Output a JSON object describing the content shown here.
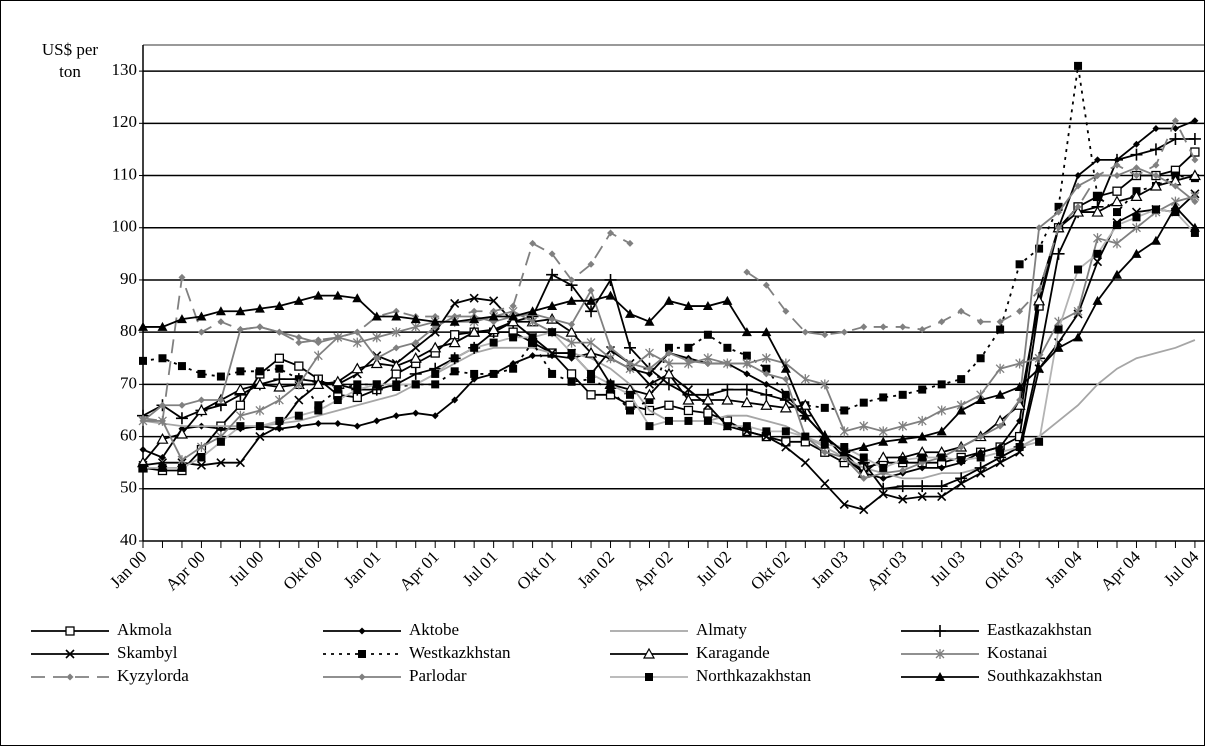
{
  "chart_data": {
    "type": "line",
    "y_label": "US$ per ton",
    "categories": [
      "Jan 00",
      null,
      null,
      "Apr 00",
      null,
      null,
      "Jul 00",
      null,
      null,
      "Okt 00",
      null,
      null,
      "Jan 01",
      null,
      null,
      "Apr 01",
      null,
      null,
      "Jul 01",
      null,
      null,
      "Okt 01",
      null,
      null,
      "Jan 02",
      null,
      null,
      "Apr 02",
      null,
      null,
      "Jul 02",
      null,
      null,
      "Okt 02",
      null,
      null,
      "Jan 03",
      null,
      null,
      "Apr 03",
      null,
      null,
      "Jul 03",
      null,
      null,
      "Okt 03",
      null,
      null,
      "Jan 04",
      null,
      null,
      "Apr 04",
      null,
      null,
      "Jul 04"
    ],
    "ylim": [
      40,
      135
    ],
    "yticks": [
      40,
      50,
      60,
      70,
      80,
      90,
      100,
      110,
      120,
      130
    ],
    "grid": true,
    "series": [
      {
        "name": "Akmola",
        "color": "#000000",
        "marker": "square-open",
        "values": [
          54,
          53.5,
          53.5,
          57.5,
          62,
          66,
          72,
          75,
          73.5,
          71,
          68,
          67.5,
          69,
          72,
          74,
          76,
          79.5,
          80,
          80,
          80,
          78,
          76,
          72,
          68,
          68,
          66,
          65,
          66,
          65,
          64.5,
          63,
          61,
          60,
          59,
          59,
          57,
          55,
          54,
          55,
          55,
          55,
          55,
          56,
          57,
          58,
          60,
          85,
          100,
          104,
          106,
          107,
          110,
          110,
          111,
          114.5
        ]
      },
      {
        "name": "Aktobe",
        "color": "#000000",
        "marker": "diamond",
        "values": [
          57.5,
          56,
          61.5,
          62,
          61.5,
          61.5,
          62,
          61.5,
          62,
          62.5,
          62.5,
          62,
          63,
          64,
          64.5,
          64,
          67,
          71,
          72,
          74,
          75.5,
          75.5,
          75,
          76,
          75,
          73,
          72,
          76,
          75,
          74,
          74,
          72,
          70,
          68,
          64,
          60,
          57,
          53,
          52,
          53,
          54,
          54,
          55,
          57,
          58,
          63,
          88,
          100,
          110,
          113,
          113,
          116,
          119,
          119,
          120.5
        ]
      },
      {
        "name": "Almaty",
        "color": "#a6a6a6",
        "marker": "none",
        "values": [
          63,
          62.5,
          62,
          62,
          62,
          62,
          62,
          62.5,
          63,
          64,
          65,
          66,
          67,
          68,
          70,
          72,
          74,
          76,
          77,
          77,
          77,
          76,
          76,
          75,
          73,
          70,
          65,
          63,
          63,
          63,
          64,
          64,
          63,
          62,
          60,
          58,
          56,
          54,
          53,
          52,
          52,
          53,
          53,
          54,
          56,
          58,
          60,
          63,
          66,
          70,
          73,
          75,
          76,
          77,
          78.5
        ]
      },
      {
        "name": "Eastkazakhstan",
        "color": "#000000",
        "marker": "plus",
        "values": [
          64,
          66,
          63.5,
          65,
          66,
          68,
          70,
          71,
          71,
          70.5,
          70,
          69,
          69,
          70,
          72,
          73,
          75,
          77,
          80,
          82,
          83,
          91,
          89,
          84,
          90,
          77,
          73,
          70,
          68,
          68,
          69,
          69,
          68,
          67,
          64,
          60,
          57,
          55,
          50,
          50.5,
          50.5,
          50.5,
          52,
          54,
          56,
          58,
          75,
          95,
          103,
          104,
          113,
          114,
          115,
          117,
          117
        ]
      },
      {
        "name": "Skambyl",
        "color": "#000000",
        "marker": "x",
        "values": [
          54.5,
          55,
          55,
          54.5,
          55,
          55,
          60,
          62,
          67,
          70,
          70,
          72,
          75.5,
          74,
          77,
          80,
          85.5,
          86.5,
          86,
          82,
          79,
          76,
          76,
          72,
          76.5,
          74,
          70,
          72,
          69,
          66,
          62,
          61,
          60,
          58,
          55,
          51,
          47,
          46,
          49,
          48,
          48.5,
          48.5,
          51,
          53,
          55,
          57,
          73,
          78,
          83.5,
          93.5,
          101,
          103,
          103.5,
          103,
          106.5
        ]
      },
      {
        "name": "Westkazkhstan",
        "color": "#000000",
        "marker": "square",
        "dash": "3,5",
        "values": [
          74.5,
          75,
          73.5,
          72,
          71.5,
          72.5,
          72.5,
          73,
          71,
          66,
          69,
          70,
          70,
          69.5,
          70,
          70,
          72.5,
          72,
          72,
          73,
          78,
          72,
          70.5,
          71,
          69,
          65,
          67,
          77,
          77,
          79.5,
          77,
          75.5,
          73,
          68,
          66,
          65.5,
          65,
          66.5,
          67.5,
          68,
          69,
          70,
          71,
          75,
          80.5,
          93,
          96,
          104,
          131,
          106,
          103,
          107,
          108,
          110,
          109.5
        ]
      },
      {
        "name": "Karagande",
        "color": "#000000",
        "marker": "triangle-open",
        "values": [
          55,
          59.5,
          60.5,
          65,
          67,
          69,
          70,
          69.5,
          70,
          70,
          70.5,
          73,
          74,
          73.5,
          75,
          77,
          78,
          80,
          80.5,
          82,
          82,
          82.5,
          80,
          76,
          70,
          69,
          68,
          72,
          67,
          67,
          67,
          66.5,
          66,
          65.5,
          66,
          60,
          56,
          53,
          56,
          56,
          57,
          57,
          58,
          60,
          63,
          66,
          86,
          100,
          103,
          103,
          105,
          106,
          108,
          109,
          110
        ]
      },
      {
        "name": "Kostanai",
        "color": "#808080",
        "marker": "asterisk",
        "values": [
          63,
          63,
          55.5,
          58,
          60,
          64,
          65,
          67,
          70,
          75.5,
          79,
          78,
          79,
          80,
          81,
          82,
          82,
          82,
          83,
          84,
          82,
          80,
          78,
          78,
          75,
          73,
          76,
          74,
          74,
          75,
          74,
          74,
          75,
          74,
          71,
          70,
          61,
          62,
          61,
          62,
          63,
          65,
          66,
          68,
          73,
          74,
          75,
          82,
          84,
          98,
          97,
          100,
          103,
          105,
          106
        ]
      },
      {
        "name": "Kyzylorda",
        "color": "#808080",
        "marker": "diamond",
        "dash": "14,8",
        "values": [
          63.5,
          63,
          90.5,
          80,
          82,
          80.5,
          81,
          80,
          78,
          78.5,
          79,
          80,
          83,
          84,
          83,
          83,
          83,
          84,
          84,
          85,
          97,
          95,
          90,
          93,
          99,
          97,
          null,
          null,
          null,
          null,
          null,
          91.5,
          89,
          84,
          80,
          79.5,
          80,
          81,
          81,
          81,
          80.5,
          82,
          84,
          82,
          82,
          84,
          88,
          100,
          104,
          110,
          112,
          110,
          112,
          120.5,
          113
        ]
      },
      {
        "name": "Parlodar",
        "color": "#808080",
        "marker": "diamond",
        "values": [
          63,
          66,
          66,
          67,
          67,
          80.5,
          81,
          80,
          79,
          78,
          79,
          80,
          75,
          77,
          78,
          81,
          83,
          83,
          82,
          83,
          83.5,
          82.5,
          81.5,
          88,
          77,
          74,
          73,
          76,
          74.5,
          74,
          74,
          74,
          72,
          71,
          60,
          57,
          56,
          52,
          53,
          53.5,
          55,
          56,
          58,
          60,
          62,
          67,
          100,
          103,
          108,
          110,
          110,
          111.5,
          110,
          108,
          105
        ]
      },
      {
        "name": "Northkazakhstan",
        "color": "#b3b3b3",
        "marker_color": "#000000",
        "marker": "square",
        "values": [
          54,
          54,
          54,
          56,
          59,
          62,
          62,
          63,
          64,
          65,
          67,
          69,
          70,
          70,
          70,
          72,
          75,
          77,
          78,
          79,
          79,
          80,
          76,
          72,
          70,
          68,
          62,
          63,
          63,
          63,
          62,
          62,
          61,
          61,
          60,
          58.5,
          58,
          56,
          54,
          55.5,
          56,
          56,
          55.5,
          56,
          57,
          58,
          59,
          80.5,
          92,
          95,
          100.5,
          102,
          103.5,
          103,
          99
        ]
      },
      {
        "name": "Southkazakhstan",
        "color": "#000000",
        "marker": "triangle",
        "values": [
          81,
          81,
          82.5,
          83,
          84,
          84,
          84.5,
          85,
          86,
          87,
          87,
          86.5,
          83,
          83,
          82.5,
          82,
          82,
          82.5,
          83,
          83,
          84,
          85,
          86,
          86,
          87,
          83.5,
          82,
          86,
          85,
          85,
          86,
          80,
          80,
          73,
          64,
          60,
          57,
          58,
          59,
          59.5,
          60,
          61,
          65,
          67,
          68,
          69.5,
          73,
          77,
          79,
          86,
          91,
          95,
          97.5,
          104,
          100
        ]
      }
    ]
  }
}
